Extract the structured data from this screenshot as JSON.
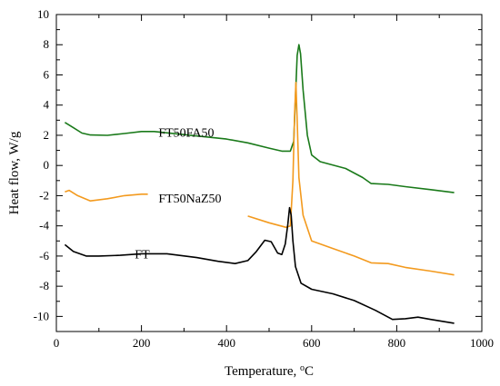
{
  "chart_data": {
    "type": "line",
    "title": "",
    "xlabel": "Temperature, °C",
    "xlabel_main": "Temperature, ",
    "xlabel_unit_sup": "o",
    "xlabel_unit": "C",
    "ylabel": "Heat flow, W/g",
    "xlim": [
      0,
      1000
    ],
    "ylim": [
      -11,
      10
    ],
    "xticks": [
      0,
      200,
      400,
      600,
      800,
      1000
    ],
    "yticks": [
      -10,
      -8,
      -6,
      -4,
      -2,
      0,
      2,
      4,
      6,
      8,
      10
    ],
    "grid": false,
    "series": [
      {
        "name": "FT50FA50",
        "color": "#1a7a1a",
        "label_at": [
          240,
          2.2
        ],
        "points": [
          [
            20,
            2.85
          ],
          [
            40,
            2.5
          ],
          [
            60,
            2.15
          ],
          [
            80,
            2.02
          ],
          [
            120,
            2.0
          ],
          [
            160,
            2.12
          ],
          [
            200,
            2.25
          ],
          [
            230,
            2.25
          ],
          [
            400,
            1.75
          ],
          [
            450,
            1.5
          ],
          [
            500,
            1.15
          ],
          [
            530,
            0.95
          ],
          [
            550,
            0.95
          ],
          [
            558,
            1.6
          ],
          [
            562,
            4.5
          ],
          [
            566,
            7.3
          ],
          [
            570,
            8.0
          ],
          [
            574,
            7.4
          ],
          [
            580,
            5.0
          ],
          [
            590,
            2.0
          ],
          [
            600,
            0.7
          ],
          [
            620,
            0.25
          ],
          [
            680,
            -0.2
          ],
          [
            720,
            -0.8
          ],
          [
            740,
            -1.2
          ],
          [
            780,
            -1.25
          ],
          [
            820,
            -1.4
          ],
          [
            880,
            -1.6
          ],
          [
            935,
            -1.8
          ]
        ]
      },
      {
        "name": "FT50NaZ50",
        "color": "#f39a1e",
        "label_at": [
          240,
          -2.15
        ],
        "points": [
          [
            20,
            -1.75
          ],
          [
            30,
            -1.65
          ],
          [
            50,
            -2.0
          ],
          [
            80,
            -2.35
          ],
          [
            120,
            -2.2
          ],
          [
            160,
            -2.0
          ],
          [
            200,
            -1.9
          ],
          [
            215,
            -1.9
          ],
          [
            390,
            -2.85
          ],
          [
            450,
            -3.35
          ],
          [
            500,
            -3.8
          ],
          [
            540,
            -4.1
          ],
          [
            550,
            -4.0
          ],
          [
            556,
            -1.0
          ],
          [
            560,
            3.5
          ],
          [
            563,
            5.5
          ],
          [
            566,
            3.0
          ],
          [
            570,
            -0.8
          ],
          [
            580,
            -3.3
          ],
          [
            600,
            -5.0
          ],
          [
            650,
            -5.5
          ],
          [
            700,
            -6.0
          ],
          [
            740,
            -6.45
          ],
          [
            780,
            -6.5
          ],
          [
            820,
            -6.75
          ],
          [
            880,
            -7.0
          ],
          [
            935,
            -7.25
          ]
        ]
      },
      {
        "name": "FT",
        "color": "#000000",
        "label_at": [
          230,
          -5.85
        ],
        "points": [
          [
            20,
            -5.25
          ],
          [
            40,
            -5.7
          ],
          [
            70,
            -6.0
          ],
          [
            100,
            -6.0
          ],
          [
            150,
            -5.95
          ],
          [
            200,
            -5.85
          ],
          [
            260,
            -5.85
          ],
          [
            330,
            -6.1
          ],
          [
            380,
            -6.35
          ],
          [
            420,
            -6.5
          ],
          [
            450,
            -6.3
          ],
          [
            470,
            -5.7
          ],
          [
            490,
            -4.95
          ],
          [
            505,
            -5.05
          ],
          [
            520,
            -5.8
          ],
          [
            530,
            -5.9
          ],
          [
            538,
            -5.2
          ],
          [
            544,
            -3.9
          ],
          [
            548,
            -2.8
          ],
          [
            552,
            -3.3
          ],
          [
            556,
            -5.0
          ],
          [
            562,
            -6.7
          ],
          [
            575,
            -7.8
          ],
          [
            600,
            -8.2
          ],
          [
            650,
            -8.5
          ],
          [
            700,
            -8.95
          ],
          [
            750,
            -9.6
          ],
          [
            790,
            -10.2
          ],
          [
            820,
            -10.15
          ],
          [
            850,
            -10.05
          ],
          [
            880,
            -10.2
          ],
          [
            935,
            -10.45
          ]
        ]
      }
    ]
  }
}
